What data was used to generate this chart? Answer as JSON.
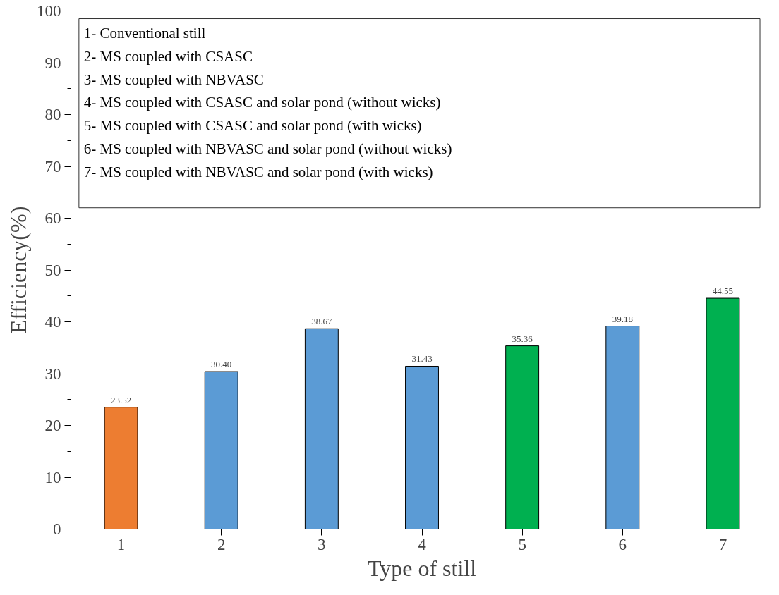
{
  "chart_data": {
    "type": "bar",
    "xlabel": "Type of still",
    "ylabel": "Efficiency(%)",
    "categories": [
      "1",
      "2",
      "3",
      "4",
      "5",
      "6",
      "7"
    ],
    "values": [
      23.52,
      30.4,
      38.67,
      31.43,
      35.36,
      39.18,
      44.55
    ],
    "colors": [
      "#ed7d31",
      "#5b9bd5",
      "#5b9bd5",
      "#5b9bd5",
      "#00b050",
      "#5b9bd5",
      "#00b050"
    ],
    "value_labels": [
      "23.52",
      "30.40",
      "38.67",
      "31.43",
      "35.36",
      "39.18",
      "44.55"
    ],
    "ylim": [
      0,
      100
    ],
    "yticks": [
      0,
      {
        "value": 5,
        "label": null
      },
      10,
      {
        "value": 15,
        "label": null
      },
      20,
      {
        "value": 25,
        "label": null
      },
      30,
      {
        "value": 35,
        "label": null
      },
      40,
      {
        "value": 45,
        "label": null
      },
      50,
      {
        "value": 55,
        "label": null
      },
      60,
      {
        "value": 65,
        "label": null
      },
      70,
      {
        "value": 75,
        "label": null
      },
      80,
      {
        "value": 85,
        "label": null
      },
      90,
      {
        "value": 95,
        "label": null
      },
      100
    ],
    "annotations": [
      "1- Conventional still",
      "2- MS coupled with CSASC",
      "3- MS coupled with NBVASC",
      "4- MS coupled with CSASC and solar pond (without wicks)",
      "5- MS coupled with CSASC and solar pond (with wicks)",
      "6- MS coupled with NBVASC and solar pond (without wicks)",
      "7- MS coupled with NBVASC and solar pond (with wicks)"
    ],
    "grid": false
  }
}
